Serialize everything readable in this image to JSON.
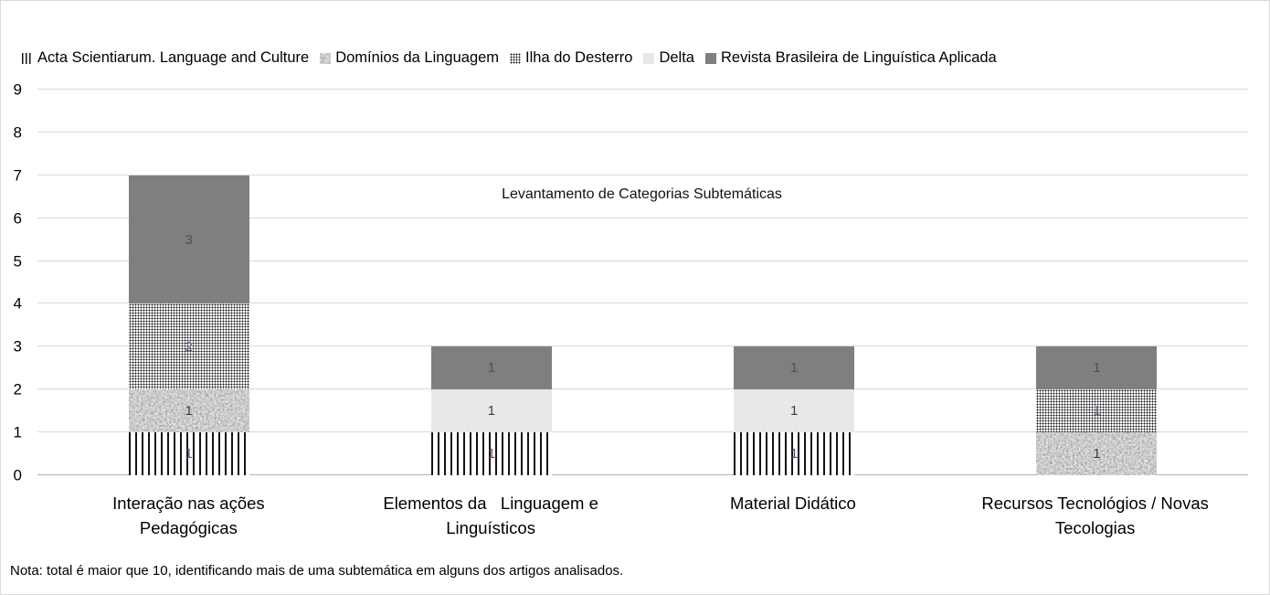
{
  "chart_data": {
    "type": "bar",
    "stacked": true,
    "title": "Levantamento de Categorias Subtemáticas",
    "note": "Nota: total é maior que 10, identificando mais de uma subtemática em alguns dos artigos analisados.",
    "categories": [
      "Interação nas ações\nPedagógicas",
      "Elementos da   Linguagem e\nLinguísticos",
      "Material Didático",
      "Recursos Tecnológios / Novas\nTecologias"
    ],
    "series": [
      {
        "name": "Acta Scientiarum. Language and Culture",
        "pattern": "vertical-stripes",
        "values": [
          1,
          1,
          1,
          0
        ],
        "label_colors": [
          "#56558e",
          "#7d4040",
          "#3d4a77",
          null
        ]
      },
      {
        "name": "Domínios da Linguagem",
        "pattern": "noise",
        "values": [
          1,
          0,
          0,
          1
        ],
        "label_colors": [
          "#3f3f3f",
          null,
          null,
          "#3f3f3f"
        ]
      },
      {
        "name": "Ilha do Desterro",
        "pattern": "dots",
        "values": [
          2,
          0,
          0,
          1
        ],
        "label_colors": [
          "#63637e",
          null,
          null,
          "#6e6e88"
        ]
      },
      {
        "name": "Delta",
        "pattern": "solid",
        "color": "#e8e8e8",
        "values": [
          0,
          1,
          1,
          0
        ],
        "label_colors": [
          null,
          "#3f3f3f",
          "#3f3f3f",
          null
        ]
      },
      {
        "name": "Revista Brasileira de Linguística Aplicada",
        "pattern": "solid",
        "color": "#7f7f7f",
        "values": [
          3,
          1,
          1,
          1
        ],
        "label_colors": [
          "#4f4f4f",
          "#4f4f4f",
          "#4f4f4f",
          "#4f4f4f"
        ]
      }
    ],
    "ylim": [
      0,
      9
    ],
    "yticks": [
      0,
      1,
      2,
      3,
      4,
      5,
      6,
      7,
      8,
      9
    ],
    "grid": true,
    "legend_position": "top",
    "default_label_color": "#595959"
  }
}
